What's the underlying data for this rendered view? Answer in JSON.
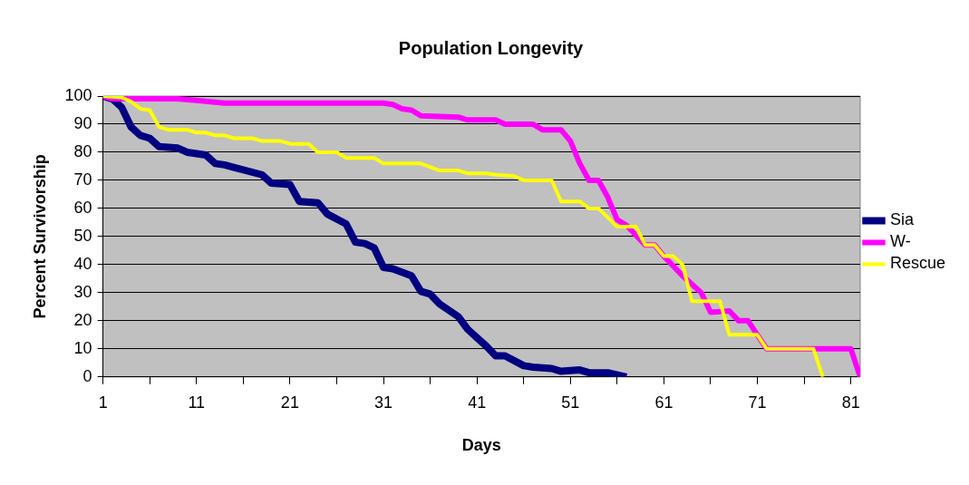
{
  "chart_data": {
    "type": "line",
    "title": "Population Longevity",
    "xlabel": "Days",
    "ylabel": "Percent Survivorship",
    "xlim": [
      1,
      82
    ],
    "xticks": [
      1,
      {
        "value": 6,
        "label": null
      },
      11,
      {
        "value": 16,
        "label": null
      },
      21,
      {
        "value": 26,
        "label": null
      },
      31,
      {
        "value": 36,
        "label": null
      },
      41,
      {
        "value": 46,
        "label": null
      },
      51,
      {
        "value": 56,
        "label": null
      },
      61,
      {
        "value": 66,
        "label": null
      },
      71,
      {
        "value": 76,
        "label": null
      },
      81
    ],
    "ylim": [
      0,
      100
    ],
    "yticks": [
      0,
      10,
      20,
      30,
      40,
      50,
      60,
      70,
      80,
      90,
      100
    ],
    "grid": "y",
    "legend": "right",
    "marker": "none",
    "line_style": "solid",
    "series": [
      {
        "name": "Sia",
        "color": "#000080",
        "x": [
          1,
          2,
          3,
          4,
          5,
          6,
          7,
          9,
          10,
          12,
          13,
          14,
          18,
          19,
          21,
          22,
          24,
          25,
          27,
          28,
          29,
          30,
          31,
          32,
          34,
          35,
          36,
          37,
          39,
          40,
          41,
          42,
          43,
          44,
          46,
          47,
          49,
          50,
          52,
          53,
          55,
          57
        ],
        "values": [
          100,
          99,
          96,
          89,
          86,
          85,
          82,
          81.5,
          80,
          79,
          76,
          75.5,
          72,
          69,
          68.5,
          62.5,
          62,
          58,
          54.5,
          48,
          47.5,
          46,
          39,
          38.5,
          36,
          30.5,
          29.5,
          26,
          21.5,
          17,
          14,
          11,
          7.5,
          7.5,
          4,
          3.5,
          3,
          2,
          2.5,
          1.5,
          1.5,
          0
        ]
      },
      {
        "name": "W-",
        "color": "#ff00ff",
        "x": [
          1,
          2,
          9,
          11,
          14,
          31,
          32,
          33,
          34,
          35,
          39,
          40,
          43,
          44,
          47,
          48,
          50,
          51,
          52,
          53,
          54,
          55,
          56,
          57,
          59,
          60,
          61,
          63,
          65,
          66,
          68,
          69,
          70,
          72,
          81,
          82
        ],
        "values": [
          100,
          99,
          99,
          98.5,
          97.5,
          97.5,
          97,
          95.5,
          95,
          93,
          92.5,
          91.5,
          91.5,
          90,
          90,
          88,
          88,
          84,
          76,
          70,
          70,
          64,
          56,
          54,
          47,
          47,
          43,
          36,
          30,
          23,
          23.5,
          20,
          20,
          10,
          10,
          0
        ]
      },
      {
        "name": "Rescue",
        "color": "#ffff00",
        "x": [
          1,
          3,
          4,
          5,
          6,
          7,
          8,
          10,
          11,
          12,
          13,
          14,
          15,
          17,
          18,
          20,
          21,
          23,
          24,
          26,
          27,
          30,
          31,
          35,
          37,
          39,
          40,
          42,
          43,
          45,
          46,
          49,
          50,
          52,
          53,
          54,
          56,
          58,
          59,
          60,
          61,
          62,
          63,
          64,
          67,
          68,
          71,
          72,
          77,
          78
        ],
        "values": [
          100,
          99.5,
          98,
          95.5,
          95,
          89,
          88,
          88,
          87,
          87,
          86,
          86,
          85,
          85,
          84,
          84,
          83,
          83,
          80,
          80,
          78,
          78,
          76,
          76,
          73.5,
          73.5,
          72.5,
          72.5,
          72,
          71.5,
          70,
          70,
          62.5,
          62.5,
          60,
          60,
          53.5,
          53.5,
          47,
          47,
          43,
          43,
          40,
          27,
          27,
          15,
          15,
          10,
          10,
          0
        ]
      }
    ]
  }
}
